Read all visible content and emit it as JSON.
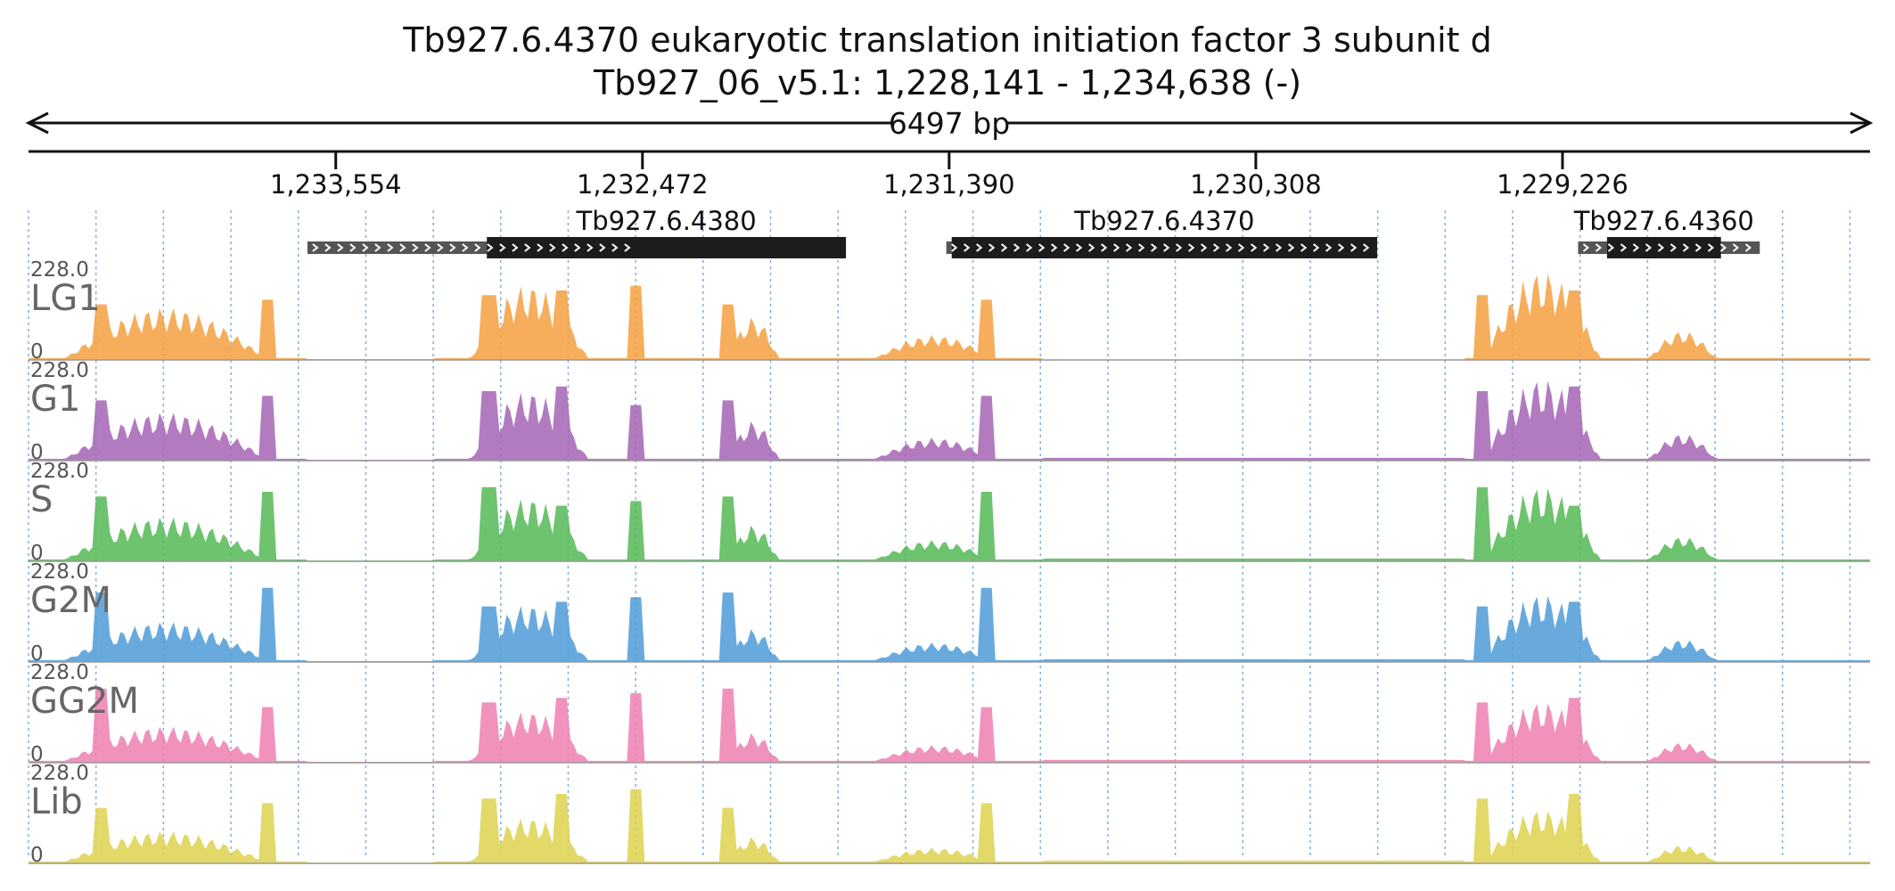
{
  "title": {
    "line1": "Tb927.6.4370  eukaryotic translation initiation factor 3 subunit d",
    "line2": "Tb927_06_v5.1: 1,228,141 - 1,234,638 (-)"
  },
  "ruler": {
    "span_label": "6497 bp",
    "region_start": 1228141,
    "region_end": 1234638,
    "strand": "-",
    "ticks": [
      "1,233,554",
      "1,232,472",
      "1,231,390",
      "1,230,308",
      "1,229,226"
    ],
    "tick_values": [
      1233554,
      1232472,
      1231390,
      1230308,
      1229226
    ]
  },
  "genes": [
    {
      "id": "Tb927.6.4380",
      "utr": [
        1233654,
        1232508
      ],
      "cds": [
        1233021,
        1231754
      ],
      "strand": "+"
    },
    {
      "id": "Tb927.6.4370",
      "utr": [
        1231400,
        1229880
      ],
      "cds": [
        1231381,
        1229880
      ],
      "strand": "+"
    },
    {
      "id": "Tb927.6.4360",
      "utr": [
        1229171,
        1228530
      ],
      "cds": [
        1229069,
        1228667
      ],
      "strand": "+"
    }
  ],
  "track_scale": {
    "max_label": "228.0",
    "min_label": "0",
    "max": 228.0,
    "min": 0
  },
  "tracks": [
    {
      "name": "LG1",
      "color": "#f4a03f",
      "clip_color": "#c0392b"
    },
    {
      "name": "G1",
      "color": "#a564b5",
      "clip_color": "#c0392b"
    },
    {
      "name": "S",
      "color": "#55b855",
      "clip_color": "#c0392b"
    },
    {
      "name": "G2M",
      "color": "#4d9bd8",
      "clip_color": "#c0392b"
    },
    {
      "name": "GG2M",
      "color": "#ef7fb2",
      "clip_color": "#c0392b"
    },
    {
      "name": "Lib",
      "color": "#ddd24f",
      "clip_color": "#c0392b"
    }
  ],
  "colors": {
    "gene_cds": "#1c1c1c",
    "gene_utr": "#555555",
    "grid": "#7fb0dd",
    "axis": "#111111"
  }
}
